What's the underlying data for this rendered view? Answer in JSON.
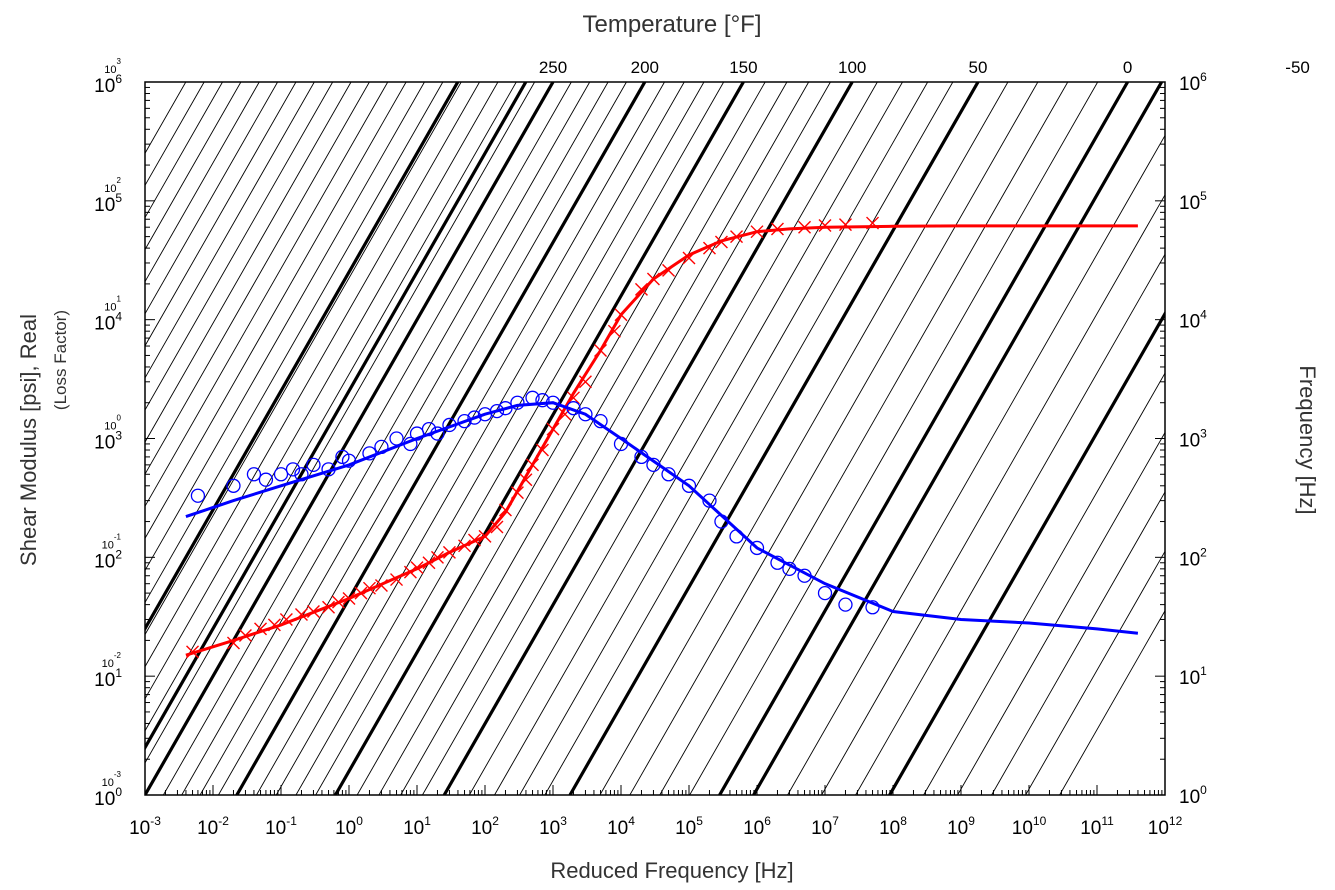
{
  "chart_data": {
    "type": "line",
    "title": "Temperature [°F]",
    "xlabel": "Reduced Frequency [Hz]",
    "ylabel": "Shear Modulus [psi], Real",
    "ylabel_sub": "(Loss Factor)",
    "y2label": "Frequency [Hz]",
    "x_scale": "log",
    "y_scale": "log",
    "xlim": [
      0.001,
      1000000000000
    ],
    "ylim": [
      1,
      1000000
    ],
    "y_loss_lim": [
      0.001,
      1000
    ],
    "y2lim": [
      1,
      1000000
    ],
    "x_ticks": [
      {
        "base": "10",
        "exp": "-3"
      },
      {
        "base": "10",
        "exp": "-2"
      },
      {
        "base": "10",
        "exp": "-1"
      },
      {
        "base": "10",
        "exp": "0"
      },
      {
        "base": "10",
        "exp": "1"
      },
      {
        "base": "10",
        "exp": "2"
      },
      {
        "base": "10",
        "exp": "3"
      },
      {
        "base": "10",
        "exp": "4"
      },
      {
        "base": "10",
        "exp": "5"
      },
      {
        "base": "10",
        "exp": "6"
      },
      {
        "base": "10",
        "exp": "7"
      },
      {
        "base": "10",
        "exp": "8"
      },
      {
        "base": "10",
        "exp": "9"
      },
      {
        "base": "10",
        "exp": "10"
      },
      {
        "base": "10",
        "exp": "11"
      },
      {
        "base": "10",
        "exp": "12"
      }
    ],
    "y_ticks": [
      {
        "base": "10",
        "exp": "0"
      },
      {
        "base": "10",
        "exp": "1"
      },
      {
        "base": "10",
        "exp": "2"
      },
      {
        "base": "10",
        "exp": "3"
      },
      {
        "base": "10",
        "exp": "4"
      },
      {
        "base": "10",
        "exp": "5"
      },
      {
        "base": "10",
        "exp": "6"
      }
    ],
    "y_loss_ticks": [
      {
        "base": "10",
        "exp": "-3"
      },
      {
        "base": "10",
        "exp": "-2"
      },
      {
        "base": "10",
        "exp": "-1"
      },
      {
        "base": "10",
        "exp": "0"
      },
      {
        "base": "10",
        "exp": "1"
      },
      {
        "base": "10",
        "exp": "2"
      },
      {
        "base": "10",
        "exp": "3"
      }
    ],
    "y2_ticks": [
      {
        "base": "10",
        "exp": "0"
      },
      {
        "base": "10",
        "exp": "1"
      },
      {
        "base": "10",
        "exp": "2"
      },
      {
        "base": "10",
        "exp": "3"
      },
      {
        "base": "10",
        "exp": "4"
      },
      {
        "base": "10",
        "exp": "5"
      },
      {
        "base": "10",
        "exp": "6"
      }
    ],
    "temperature_labels": [
      "250",
      "200",
      "150",
      "100",
      "50",
      "0",
      "-50"
    ],
    "isotherm_nomogram": {
      "major_temperatures_F": [
        250,
        200,
        150,
        100,
        50,
        0,
        -50
      ],
      "minor_step_F": 10,
      "major_intercepts_log10_fr_at_f1": [
        -3.0,
        -1.65,
        -0.2,
        1.4,
        3.25,
        5.45,
        7.95
      ],
      "extra_major_intercept_log10_fr_at_f1": 5.95
    },
    "colors": {
      "storage_modulus": "#ff0000",
      "loss_factor": "#0000ff",
      "isotherms": "#000000"
    },
    "series": [
      {
        "quantity": "storage_modulus_psi",
        "color": "#ff0000",
        "marker": "x",
        "fit_curve": [
          [
            0.004,
            15
          ],
          [
            0.02,
            20
          ],
          [
            0.1,
            27
          ],
          [
            1,
            45
          ],
          [
            10,
            80
          ],
          [
            30,
            110
          ],
          [
            100,
            150
          ],
          [
            200,
            240
          ],
          [
            500,
            600
          ],
          [
            1000,
            1200
          ],
          [
            2000,
            2400
          ],
          [
            5000,
            5500
          ],
          [
            10000,
            11000
          ],
          [
            30000,
            22000
          ],
          [
            100000,
            35000
          ],
          [
            300000,
            46000
          ],
          [
            1000000,
            55000
          ],
          [
            3000000,
            58000
          ],
          [
            10000000,
            60000
          ],
          [
            100000000,
            61000
          ],
          [
            1000000000,
            61500
          ],
          [
            10000000000,
            61500
          ],
          [
            400000000000,
            61500
          ]
        ],
        "points": [
          [
            0.005,
            16
          ],
          [
            0.02,
            19
          ],
          [
            0.03,
            22
          ],
          [
            0.05,
            25
          ],
          [
            0.08,
            27
          ],
          [
            0.12,
            30
          ],
          [
            0.2,
            33
          ],
          [
            0.3,
            35
          ],
          [
            0.5,
            38
          ],
          [
            0.7,
            42
          ],
          [
            1.0,
            45
          ],
          [
            1.5,
            50
          ],
          [
            2,
            55
          ],
          [
            3,
            58
          ],
          [
            5,
            65
          ],
          [
            8,
            75
          ],
          [
            10,
            82
          ],
          [
            15,
            90
          ],
          [
            20,
            100
          ],
          [
            30,
            110
          ],
          [
            50,
            125
          ],
          [
            70,
            140
          ],
          [
            100,
            150
          ],
          [
            150,
            180
          ],
          [
            200,
            250
          ],
          [
            300,
            350
          ],
          [
            400,
            450
          ],
          [
            500,
            600
          ],
          [
            700,
            800
          ],
          [
            1000,
            1200
          ],
          [
            1500,
            1600
          ],
          [
            2000,
            2200
          ],
          [
            3000,
            3000
          ],
          [
            5000,
            5500
          ],
          [
            8000,
            8000
          ],
          [
            10000,
            11000
          ],
          [
            20000,
            18000
          ],
          [
            30000,
            22000
          ],
          [
            50000,
            26000
          ],
          [
            100000,
            33000
          ],
          [
            200000,
            40000
          ],
          [
            300000,
            45000
          ],
          [
            500000,
            50000
          ],
          [
            1000000,
            55000
          ],
          [
            2000000,
            58000
          ],
          [
            5000000,
            60000
          ],
          [
            10000000,
            62000
          ],
          [
            20000000,
            63000
          ],
          [
            50000000,
            65000
          ]
        ]
      },
      {
        "quantity": "loss_factor",
        "color": "#0000ff",
        "marker": "o",
        "fit_curve": [
          [
            0.004,
            0.22
          ],
          [
            0.02,
            0.3
          ],
          [
            0.1,
            0.4
          ],
          [
            1,
            0.6
          ],
          [
            10,
            1.0
          ],
          [
            100,
            1.6
          ],
          [
            300,
            1.9
          ],
          [
            1000,
            2.0
          ],
          [
            3000,
            1.6
          ],
          [
            10000,
            1.0
          ],
          [
            100000,
            0.4
          ],
          [
            1000000,
            0.12
          ],
          [
            10000000,
            0.06
          ],
          [
            100000000,
            0.035
          ],
          [
            1000000000,
            0.03
          ],
          [
            10000000000,
            0.028
          ],
          [
            100000000000,
            0.025
          ],
          [
            400000000000,
            0.023
          ]
        ],
        "points": [
          [
            0.006,
            0.33
          ],
          [
            0.02,
            0.4
          ],
          [
            0.04,
            0.5
          ],
          [
            0.06,
            0.45
          ],
          [
            0.1,
            0.5
          ],
          [
            0.15,
            0.55
          ],
          [
            0.2,
            0.5
          ],
          [
            0.3,
            0.6
          ],
          [
            0.5,
            0.55
          ],
          [
            0.8,
            0.7
          ],
          [
            1,
            0.65
          ],
          [
            2,
            0.75
          ],
          [
            3,
            0.85
          ],
          [
            5,
            1.0
          ],
          [
            8,
            0.9
          ],
          [
            10,
            1.1
          ],
          [
            15,
            1.2
          ],
          [
            20,
            1.1
          ],
          [
            30,
            1.3
          ],
          [
            50,
            1.4
          ],
          [
            70,
            1.5
          ],
          [
            100,
            1.6
          ],
          [
            150,
            1.7
          ],
          [
            200,
            1.8
          ],
          [
            300,
            2.0
          ],
          [
            500,
            2.2
          ],
          [
            700,
            2.1
          ],
          [
            1000,
            2.0
          ],
          [
            2000,
            1.8
          ],
          [
            3000,
            1.6
          ],
          [
            5000,
            1.4
          ],
          [
            10000,
            0.9
          ],
          [
            20000,
            0.7
          ],
          [
            30000,
            0.6
          ],
          [
            50000,
            0.5
          ],
          [
            100000,
            0.4
          ],
          [
            200000,
            0.3
          ],
          [
            300000,
            0.2
          ],
          [
            500000,
            0.15
          ],
          [
            1000000,
            0.12
          ],
          [
            2000000,
            0.09
          ],
          [
            3000000,
            0.08
          ],
          [
            5000000,
            0.07
          ],
          [
            10000000,
            0.05
          ],
          [
            20000000,
            0.04
          ],
          [
            50000000,
            0.038
          ]
        ]
      }
    ]
  }
}
